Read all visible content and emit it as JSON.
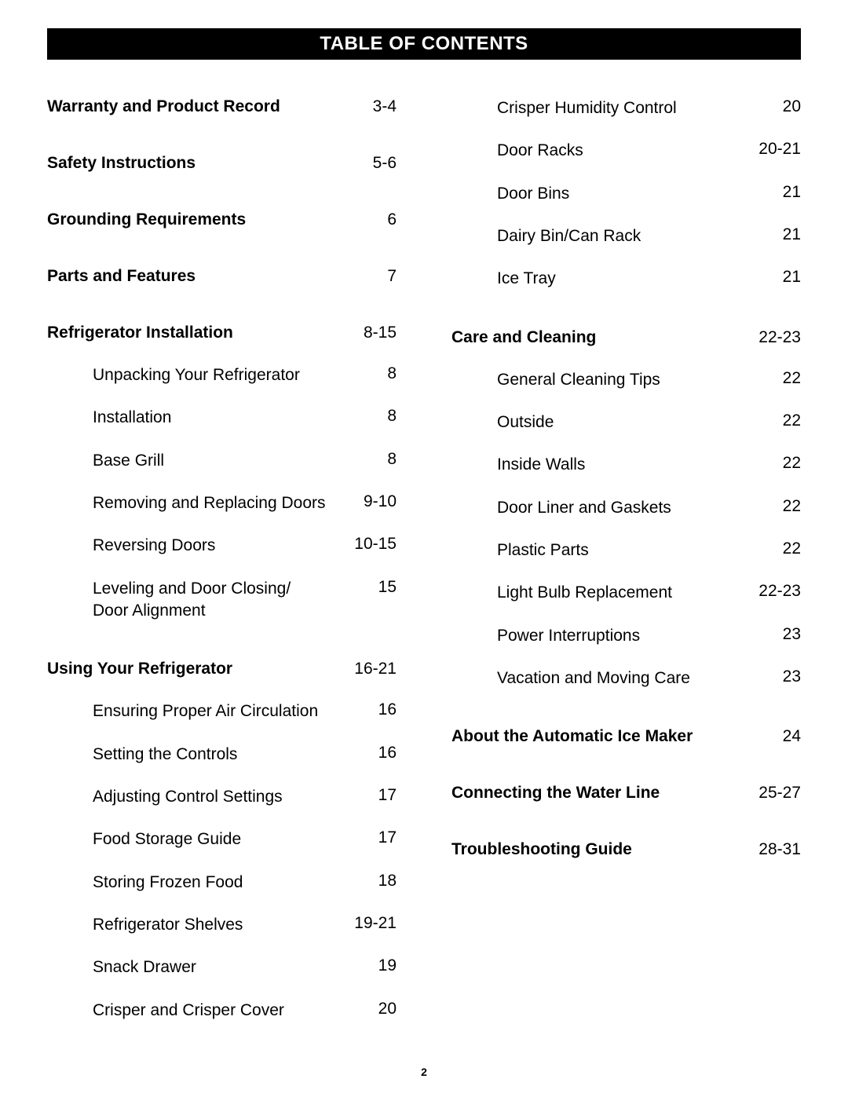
{
  "title": "TABLE OF CONTENTS",
  "page_number": "2",
  "left_column": [
    {
      "title": "Warranty and Product Record",
      "page": "3-4",
      "items": []
    },
    {
      "title": "Safety Instructions",
      "page": "5-6",
      "items": []
    },
    {
      "title": "Grounding Requirements",
      "page": "6",
      "items": []
    },
    {
      "title": "Parts and Features",
      "page": "7",
      "items": []
    },
    {
      "title": "Refrigerator Installation",
      "page": "8-15",
      "items": [
        {
          "label": "Unpacking Your Refrigerator",
          "page": "8"
        },
        {
          "label": "Installation",
          "page": "8"
        },
        {
          "label": "Base Grill",
          "page": "8"
        },
        {
          "label": "Removing and Replacing Doors",
          "page": "9-10"
        },
        {
          "label": "Reversing Doors",
          "page": "10-15"
        },
        {
          "label": "Leveling and Door Closing/ Door Alignment",
          "page": "15"
        }
      ]
    },
    {
      "title": "Using Your Refrigerator",
      "page": "16-21",
      "items": [
        {
          "label": "Ensuring Proper Air Circulation",
          "page": "16"
        },
        {
          "label": "Setting the Controls",
          "page": "16"
        },
        {
          "label": "Adjusting Control Settings",
          "page": "17"
        },
        {
          "label": "Food Storage Guide",
          "page": "17"
        },
        {
          "label": "Storing Frozen Food",
          "page": "18"
        },
        {
          "label": "Refrigerator Shelves",
          "page": "19-21"
        },
        {
          "label": "Snack Drawer",
          "page": "19"
        },
        {
          "label": "Crisper and Crisper Cover",
          "page": "20"
        }
      ]
    }
  ],
  "right_column": [
    {
      "title": "",
      "page": "",
      "items": [
        {
          "label": "Crisper Humidity Control",
          "page": "20"
        },
        {
          "label": "Door Racks",
          "page": "20-21"
        },
        {
          "label": "Door Bins",
          "page": "21"
        },
        {
          "label": "Dairy Bin/Can Rack",
          "page": "21"
        },
        {
          "label": "Ice Tray",
          "page": "21"
        }
      ]
    },
    {
      "title": "Care and Cleaning",
      "page": "22-23",
      "items": [
        {
          "label": "General Cleaning Tips",
          "page": "22"
        },
        {
          "label": "Outside",
          "page": "22"
        },
        {
          "label": "Inside Walls",
          "page": "22"
        },
        {
          "label": "Door Liner and Gaskets",
          "page": "22"
        },
        {
          "label": "Plastic Parts",
          "page": "22"
        },
        {
          "label": "Light Bulb Replacement",
          "page": "22-23"
        },
        {
          "label": "Power Interruptions",
          "page": "23"
        },
        {
          "label": "Vacation and Moving Care",
          "page": "23"
        }
      ]
    },
    {
      "title": "About the Automatic Ice Maker",
      "page": "24",
      "items": []
    },
    {
      "title": "Connecting the Water Line",
      "page": "25-27",
      "items": []
    },
    {
      "title": "Troubleshooting Guide",
      "page": "28-31",
      "items": []
    }
  ],
  "styles": {
    "title_bg": "#000000",
    "title_fg": "#ffffff",
    "body_bg": "#ffffff",
    "font_family": "Arial",
    "title_fontsize": 24,
    "body_fontsize": 21,
    "page_num_fontsize": 14
  }
}
